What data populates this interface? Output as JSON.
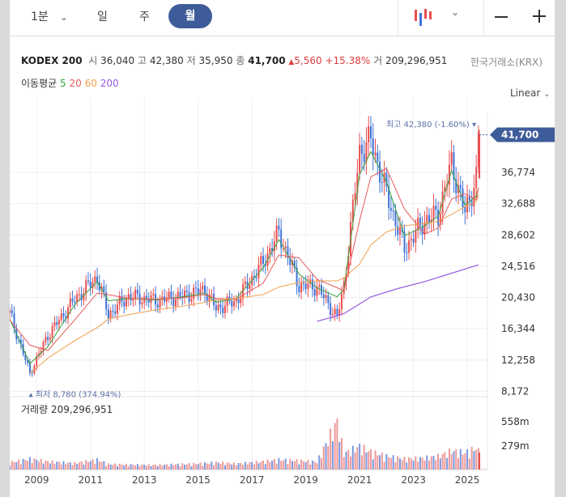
{
  "toolbar": {
    "items": [
      "1분",
      "일",
      "주",
      "월"
    ],
    "active": "월"
  },
  "header": {
    "name": "KODEX 200",
    "open_label": "시",
    "open": "36,040",
    "high_label": "고",
    "high": "42,380",
    "low_label": "저",
    "low": "35,950",
    "close_label": "종",
    "close": "41,700",
    "change": "5,560",
    "change_pct": "+15.38%",
    "volume_label": "거",
    "volume": "209,296,951",
    "exchange": "한국거래소(KRX)"
  },
  "ma": {
    "label": "이동평균",
    "periods": [
      "5",
      "20",
      "60",
      "200"
    ],
    "colors": [
      "#36a03c",
      "#e85a5a",
      "#f0a04a",
      "#9a5ae0"
    ]
  },
  "scale_mode": "Linear",
  "annotations": {
    "max": "최고 42,380 (-1.60%)",
    "min": "최저 8,780 (374.94%)",
    "last_price": "41,700"
  },
  "volume_panel": {
    "title": "거래량 209,296,951",
    "ticks": [
      "558m",
      "279m"
    ]
  },
  "colors": {
    "up": "#e84f4f",
    "down": "#3f73d8",
    "accent": "#3f5c9a"
  },
  "chart_data": {
    "type": "candlestick",
    "title": "KODEX 200",
    "interval": "monthly",
    "ylim": [
      8000,
      44500
    ],
    "y_ticks": [
      41700,
      36774,
      32688,
      28602,
      24516,
      20430,
      16344,
      12258,
      8172
    ],
    "y_tick_labels": [
      "41,700",
      "36,774",
      "32,688",
      "28,602",
      "24,516",
      "20,430",
      "16,344",
      "12,258",
      "8,172"
    ],
    "x_tick_labels": [
      "2009",
      "2011",
      "2013",
      "2015",
      "2017",
      "2019",
      "2021",
      "2023",
      "2025"
    ],
    "series": [
      {
        "name": "price_close_approx",
        "x": [
          "2008-01",
          "2008-10",
          "2009-06",
          "2010-06",
          "2011-04",
          "2011-09",
          "2012-06",
          "2013-06",
          "2014-06",
          "2015-04",
          "2015-09",
          "2016-06",
          "2017-06",
          "2018-01",
          "2018-10",
          "2019-06",
          "2020-03",
          "2020-06",
          "2021-01",
          "2021-06",
          "2022-01",
          "2022-09",
          "2023-06",
          "2023-12",
          "2024-06",
          "2024-12",
          "2025-05",
          "2025-06"
        ],
        "values": [
          18400,
          10500,
          15500,
          20200,
          23100,
          18200,
          20600,
          20000,
          20600,
          21500,
          19000,
          20000,
          25000,
          28900,
          22000,
          21800,
          17800,
          22000,
          39500,
          41000,
          34000,
          26800,
          30500,
          31300,
          38000,
          31500,
          36040,
          41700
        ]
      },
      {
        "name": "MA5",
        "values": [
          17600,
          11800,
          14000,
          19500,
          22500,
          20000,
          20300,
          20100,
          20500,
          21000,
          19800,
          20300,
          24300,
          28000,
          23500,
          21700,
          20500,
          21500,
          36500,
          39500,
          35500,
          28500,
          29800,
          31000,
          37000,
          32500,
          33700,
          34800
        ]
      },
      {
        "name": "MA20",
        "values": [
          17500,
          14200,
          13500,
          17500,
          21000,
          20800,
          20300,
          20200,
          20400,
          20800,
          20300,
          20200,
          22300,
          26000,
          25600,
          22800,
          21700,
          21300,
          30500,
          36200,
          37300,
          32000,
          28700,
          29500,
          33300,
          34000,
          33200,
          34800
        ]
      },
      {
        "name": "MA60",
        "values": [
          null,
          10500,
          12500,
          14800,
          16500,
          17600,
          18200,
          18800,
          19300,
          19800,
          20100,
          20300,
          20800,
          21800,
          22400,
          22600,
          22600,
          23000,
          24800,
          27300,
          29000,
          29800,
          30100,
          30400,
          31300,
          32300,
          33000,
          33800
        ]
      },
      {
        "name": "MA200",
        "x": [
          "2019-06",
          "2020-06",
          "2021-06",
          "2022-06",
          "2023-06",
          "2024-06",
          "2025-06"
        ],
        "values": [
          17300,
          18300,
          20500,
          21600,
          22500,
          23600,
          24700
        ]
      },
      {
        "name": "volume_millions_approx",
        "values": [
          80,
          120,
          90,
          70,
          110,
          60,
          55,
          50,
          60,
          70,
          80,
          65,
          90,
          110,
          100,
          85,
          540,
          180,
          260,
          200,
          150,
          120,
          130,
          150,
          210,
          190,
          240,
          209
        ]
      }
    ],
    "max_point": {
      "value": 42380,
      "label": "최고 42,380 (-1.60%)"
    },
    "min_point": {
      "value": 8780,
      "label": "최저 8,780 (374.94%)"
    }
  }
}
